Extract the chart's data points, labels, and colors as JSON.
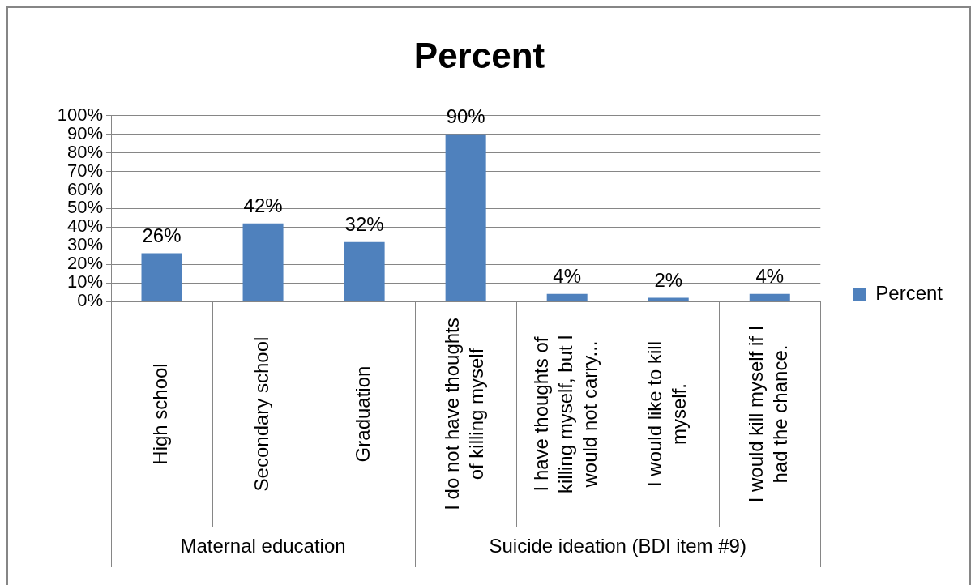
{
  "chart_data": {
    "type": "bar",
    "title": "Percent",
    "categories": [
      "High school",
      "Secondary school",
      "Graduation",
      "I do not have thoughts of killing myself",
      "I have thoughts of killing myself, but I would not carry...",
      "I would like to kill myself.",
      "I would kill myself if I had the chance."
    ],
    "series": [
      {
        "name": "Percent",
        "color": "#4f81bd",
        "values": [
          26,
          42,
          32,
          90,
          4,
          2,
          4
        ],
        "value_labels": [
          "26%",
          "42%",
          "32%",
          "90%",
          "4%",
          "2%",
          "4%"
        ]
      }
    ],
    "ylim": [
      0,
      100
    ],
    "yticks": [
      {
        "value": 0,
        "label": "0%"
      },
      {
        "value": 10,
        "label": "10%"
      },
      {
        "value": 20,
        "label": "20%"
      },
      {
        "value": 30,
        "label": "30%"
      },
      {
        "value": 40,
        "label": "40%"
      },
      {
        "value": 50,
        "label": "50%"
      },
      {
        "value": 60,
        "label": "60%"
      },
      {
        "value": 70,
        "label": "70%"
      },
      {
        "value": 80,
        "label": "80%"
      },
      {
        "value": 90,
        "label": "90%"
      },
      {
        "value": 100,
        "label": "100%"
      }
    ],
    "grid": "y",
    "legend": "right",
    "annotations": [
      "Maternal education",
      "Suicide ideation (BDI item #9)"
    ]
  }
}
